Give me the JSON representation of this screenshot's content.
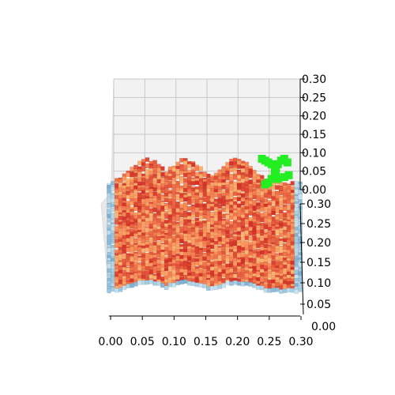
{
  "chart_data": {
    "type": "scatter",
    "projection": "3d",
    "title": "",
    "xlabel": "",
    "ylabel": "",
    "zlabel": "",
    "grid": true,
    "xlim": [
      0.0,
      0.3
    ],
    "ylim": [
      0.0,
      0.3
    ],
    "zlim": [
      0.0,
      0.3
    ],
    "x_ticks": [
      "0.00",
      "0.05",
      "0.10",
      "0.15",
      "0.20",
      "0.25",
      "0.30"
    ],
    "y_ticks": [
      "0.05",
      "0.10",
      "0.15",
      "0.20",
      "0.25",
      "0.30"
    ],
    "y_origin_tick": "0.00",
    "z_ticks": [
      "0.00",
      "0.05",
      "0.10",
      "0.15",
      "0.20",
      "0.25",
      "0.30"
    ],
    "colormap": [
      "#4575b4",
      "#91bfdb",
      "#e0f3f8",
      "#fee090",
      "#fc8d59",
      "#d73027"
    ],
    "surface_points": {
      "marker": "square",
      "x_range": [
        0.0,
        0.3
      ],
      "y_range": [
        0.04,
        0.29
      ],
      "spacing": 0.006,
      "z_range": [
        0.0,
        0.07
      ],
      "peaks_x": [
        0.06,
        0.12,
        0.2
      ],
      "peak_height_z": 0.065
    },
    "highlight": {
      "color": "#22ee22",
      "marker": "square",
      "points": [
        [
          0.24,
          0.295,
          0.09
        ],
        [
          0.245,
          0.295,
          0.085
        ],
        [
          0.25,
          0.295,
          0.08
        ],
        [
          0.255,
          0.295,
          0.075
        ],
        [
          0.26,
          0.295,
          0.065
        ],
        [
          0.262,
          0.295,
          0.055
        ],
        [
          0.26,
          0.295,
          0.045
        ],
        [
          0.255,
          0.295,
          0.035
        ],
        [
          0.25,
          0.295,
          0.025
        ],
        [
          0.245,
          0.295,
          0.02
        ],
        [
          0.265,
          0.295,
          0.075
        ],
        [
          0.27,
          0.295,
          0.085
        ],
        [
          0.275,
          0.295,
          0.09
        ],
        [
          0.28,
          0.295,
          0.08
        ],
        [
          0.265,
          0.295,
          0.035
        ],
        [
          0.275,
          0.295,
          0.04
        ],
        [
          0.282,
          0.295,
          0.045
        ]
      ]
    }
  }
}
